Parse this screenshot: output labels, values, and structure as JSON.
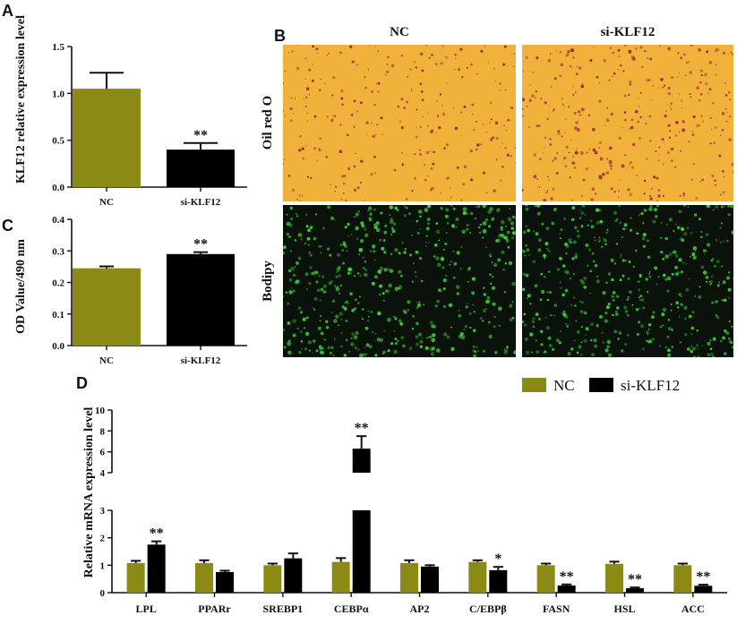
{
  "panels": {
    "a": "A",
    "b": "B",
    "c": "C",
    "d": "D"
  },
  "colors": {
    "nc": "#8a8a14",
    "si": "#000000",
    "oil_bg": "#f0b23a",
    "oil_dot": "#a8283a",
    "bodipy_bg": "#0b120b",
    "bodipy_dot": "#3fd13a"
  },
  "images": {
    "col_labels": [
      "NC",
      "si-KLF12"
    ],
    "row_labels": [
      "Oil red O",
      "Bodipy"
    ]
  },
  "chart_data": [
    {
      "id": "A",
      "type": "bar",
      "ylabel": "KLF12 relative  expression level",
      "categories": [
        "NC",
        "si-KLF12"
      ],
      "values": [
        1.05,
        0.4
      ],
      "errors": [
        0.17,
        0.07
      ],
      "significance": [
        "",
        "**"
      ],
      "ylim": [
        0,
        1.5
      ],
      "yticks": [
        "0.0",
        "0.5",
        "1.0",
        "1.5"
      ],
      "ytick_values": [
        0,
        0.5,
        1.0,
        1.5
      ]
    },
    {
      "id": "C",
      "type": "bar",
      "ylabel": "OD Value/490 nm",
      "categories": [
        "NC",
        "si-KLF12"
      ],
      "values": [
        0.245,
        0.29
      ],
      "errors": [
        0.006,
        0.006
      ],
      "significance": [
        "",
        "**"
      ],
      "ylim": [
        0,
        0.4
      ],
      "yticks": [
        "0.0",
        "0.1",
        "0.2",
        "0.3",
        "0.4"
      ],
      "ytick_values": [
        0,
        0.1,
        0.2,
        0.3,
        0.4
      ]
    },
    {
      "id": "D",
      "type": "bar",
      "ylabel": "Relative  mRNA expression level",
      "categories": [
        "LPL",
        "PPARr",
        "SREBP1",
        "CEBPα",
        "AP2",
        "C/EBPβ",
        "FASN",
        "HSL",
        "ACC"
      ],
      "series": [
        {
          "name": "NC",
          "values": [
            1.08,
            1.08,
            1.0,
            1.12,
            1.08,
            1.12,
            1.0,
            1.05,
            1.0
          ],
          "errors": [
            0.08,
            0.1,
            0.06,
            0.14,
            0.1,
            0.06,
            0.06,
            0.08,
            0.06
          ]
        },
        {
          "name": "si-KLF12",
          "values": [
            1.75,
            0.75,
            1.25,
            6.3,
            0.95,
            0.82,
            0.26,
            0.16,
            0.25
          ],
          "errors": [
            0.12,
            0.05,
            0.18,
            1.2,
            0.05,
            0.12,
            0.04,
            0.03,
            0.04
          ]
        }
      ],
      "significance": [
        "**",
        "",
        "",
        "**",
        "",
        "*",
        "**",
        "**",
        "**"
      ],
      "yaxis_break": [
        3,
        4
      ],
      "yticks": [
        "0",
        "1",
        "2",
        "3",
        "4",
        "6",
        "8",
        "10"
      ],
      "ytick_values": [
        0,
        1,
        2,
        3,
        4,
        6,
        8,
        10
      ],
      "legend": {
        "position": "top-right",
        "entries": [
          "NC",
          "si-KLF12"
        ]
      }
    }
  ]
}
